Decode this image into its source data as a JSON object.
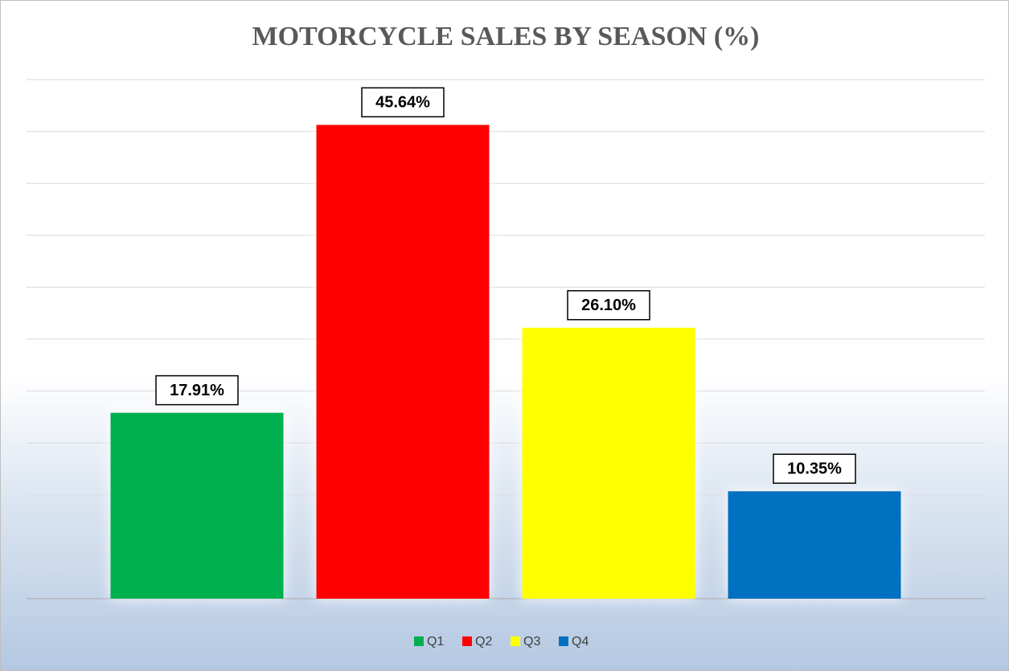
{
  "chart_data": {
    "type": "bar",
    "title": "MOTORCYCLE SALES BY SEASON (%)",
    "series": [
      {
        "name": "Q1",
        "color": "#00b050",
        "values": [
          17.91
        ],
        "value_labels": [
          "17.91%"
        ]
      },
      {
        "name": "Q2",
        "color": "#ff0000",
        "values": [
          45.64
        ],
        "value_labels": [
          "45.64%"
        ]
      },
      {
        "name": "Q3",
        "color": "#ffff00",
        "values": [
          26.1
        ],
        "value_labels": [
          "26.10%"
        ]
      },
      {
        "name": "Q4",
        "color": "#0070c0",
        "values": [
          10.35
        ],
        "value_labels": [
          "10.35%"
        ]
      }
    ],
    "ylim": [
      0,
      50
    ],
    "yticks": [
      0,
      5,
      10,
      15,
      20,
      25,
      30,
      35,
      40,
      45,
      50
    ],
    "grid": true,
    "legend": "bottom"
  }
}
